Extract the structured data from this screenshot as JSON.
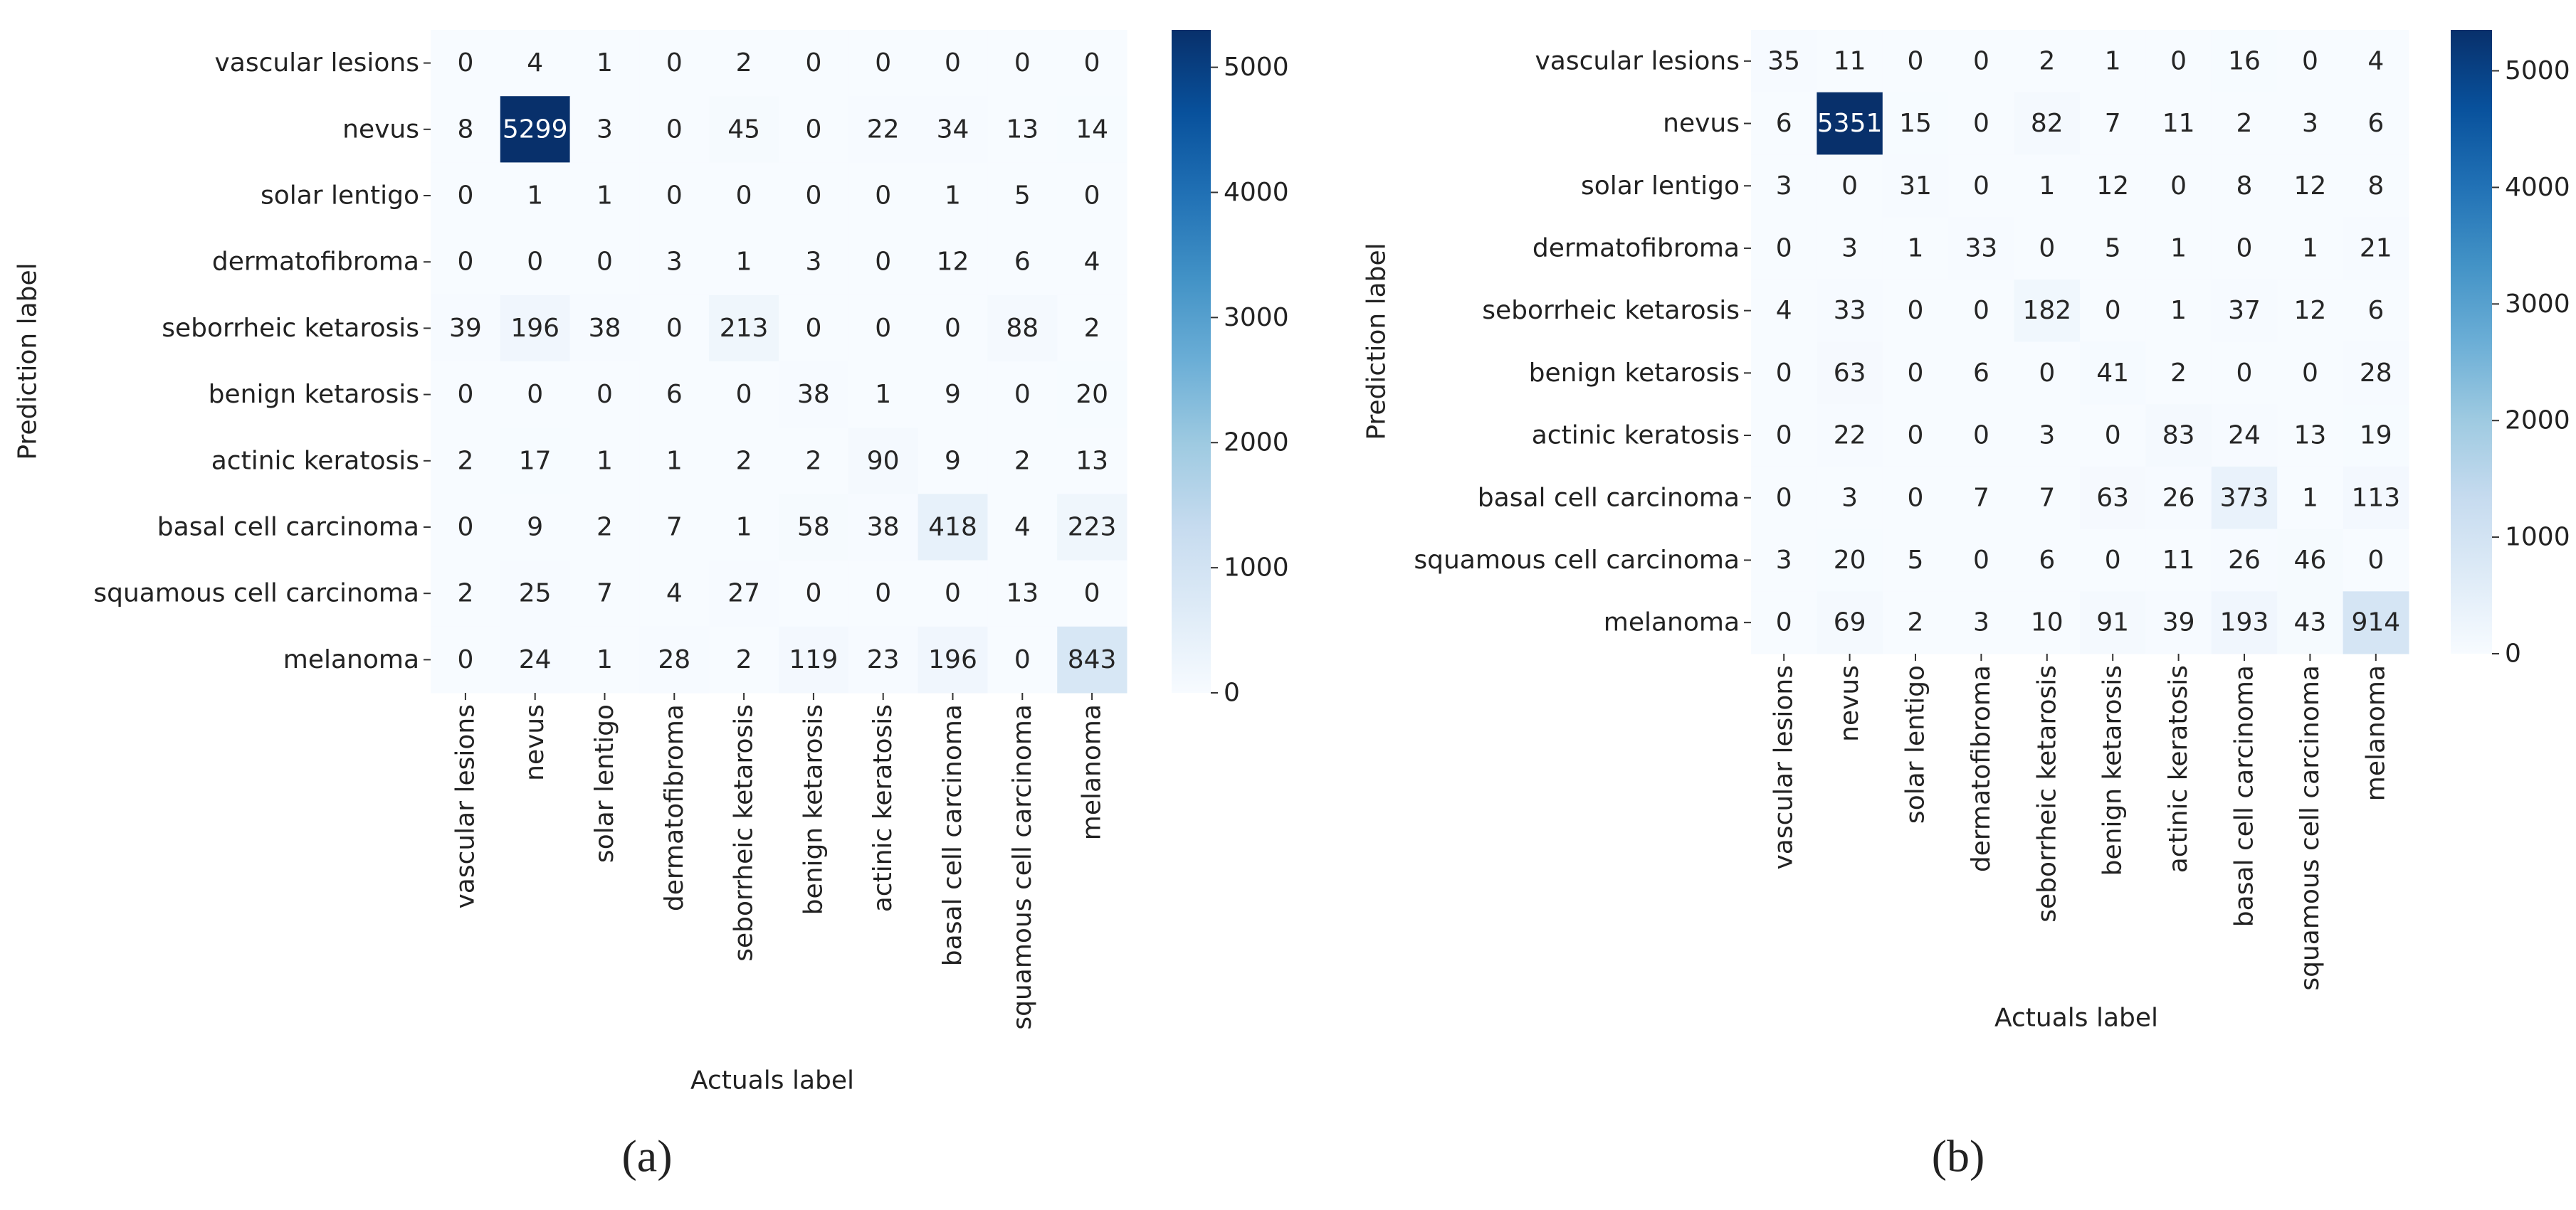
{
  "chart_data": [
    {
      "type": "heatmap",
      "caption": "(a)",
      "xlabel": "Actuals label",
      "ylabel": "Prediction label",
      "categories": [
        "vascular lesions",
        "nevus",
        "solar lentigo",
        "dermatofibroma",
        "seborrheic ketarosis",
        "benign ketarosis",
        "actinic keratosis",
        "basal cell carcinoma",
        "squamous cell carcinoma",
        "melanoma"
      ],
      "values": [
        [
          0,
          4,
          1,
          0,
          2,
          0,
          0,
          0,
          0,
          0
        ],
        [
          8,
          5299,
          3,
          0,
          45,
          0,
          22,
          34,
          13,
          14
        ],
        [
          0,
          1,
          1,
          0,
          0,
          0,
          0,
          1,
          5,
          0
        ],
        [
          0,
          0,
          0,
          3,
          1,
          3,
          0,
          12,
          6,
          4
        ],
        [
          39,
          196,
          38,
          0,
          213,
          0,
          0,
          0,
          88,
          2
        ],
        [
          0,
          0,
          0,
          6,
          0,
          38,
          1,
          9,
          0,
          20
        ],
        [
          2,
          17,
          1,
          1,
          2,
          2,
          90,
          9,
          2,
          13
        ],
        [
          0,
          9,
          2,
          7,
          1,
          58,
          38,
          418,
          4,
          223
        ],
        [
          2,
          25,
          7,
          4,
          27,
          0,
          0,
          0,
          13,
          0
        ],
        [
          0,
          24,
          1,
          28,
          2,
          119,
          23,
          196,
          0,
          843
        ]
      ],
      "clim": [
        0,
        5299
      ],
      "cbar_ticks": [
        0,
        1000,
        2000,
        3000,
        4000,
        5000
      ],
      "cmap": [
        "#f7fbff",
        "#deebf7",
        "#c6dbef",
        "#9ecae1",
        "#6baed6",
        "#4292c6",
        "#2171b5",
        "#08519c",
        "#08306b"
      ]
    },
    {
      "type": "heatmap",
      "caption": "(b)",
      "xlabel": "Actuals label",
      "ylabel": "Prediction label",
      "categories": [
        "vascular lesions",
        "nevus",
        "solar lentigo",
        "dermatofibroma",
        "seborrheic ketarosis",
        "benign ketarosis",
        "actinic keratosis",
        "basal cell carcinoma",
        "squamous cell carcinoma",
        "melanoma"
      ],
      "values": [
        [
          35,
          11,
          0,
          0,
          2,
          1,
          0,
          16,
          0,
          4
        ],
        [
          6,
          5351,
          15,
          0,
          82,
          7,
          11,
          2,
          3,
          6
        ],
        [
          3,
          0,
          31,
          0,
          1,
          12,
          0,
          8,
          12,
          8
        ],
        [
          0,
          3,
          1,
          33,
          0,
          5,
          1,
          0,
          1,
          21
        ],
        [
          4,
          33,
          0,
          0,
          182,
          0,
          1,
          37,
          12,
          6
        ],
        [
          0,
          63,
          0,
          6,
          0,
          41,
          2,
          0,
          0,
          28
        ],
        [
          0,
          22,
          0,
          0,
          3,
          0,
          83,
          24,
          13,
          19
        ],
        [
          0,
          3,
          0,
          7,
          7,
          63,
          26,
          373,
          1,
          113
        ],
        [
          3,
          20,
          5,
          0,
          6,
          0,
          11,
          26,
          46,
          0
        ],
        [
          0,
          69,
          2,
          3,
          10,
          91,
          39,
          193,
          43,
          914
        ]
      ],
      "clim": [
        0,
        5351
      ],
      "cbar_ticks": [
        0,
        1000,
        2000,
        3000,
        4000,
        5000
      ],
      "cmap": [
        "#f7fbff",
        "#deebf7",
        "#c6dbef",
        "#9ecae1",
        "#6baed6",
        "#4292c6",
        "#2171b5",
        "#08519c",
        "#08306b"
      ]
    }
  ]
}
